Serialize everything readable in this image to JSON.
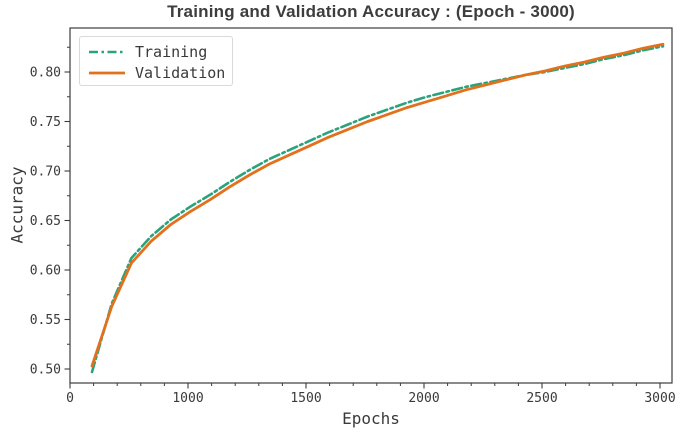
{
  "chart_data": {
    "type": "line",
    "title": "Training and Validation Accuracy : (Epoch - 3000)",
    "xlabel": "Epochs",
    "ylabel": "Accuracy",
    "x": [
      100,
      200,
      300,
      400,
      500,
      600,
      700,
      800,
      900,
      1000,
      1100,
      1200,
      1300,
      1400,
      1500,
      1600,
      1700,
      1800,
      1900,
      2000,
      2100,
      2200,
      2300,
      2400,
      2500,
      2600,
      2700,
      2800,
      2900,
      3000
    ],
    "x_tick_labels": [
      "0",
      "1000",
      "1500",
      "2000",
      "2500",
      "3000"
    ],
    "x_ticks_equally_spaced": true,
    "x_minor_ticks_per_interval": 4,
    "y_ticks": [
      0.5,
      0.55,
      0.6,
      0.65,
      0.7,
      0.75,
      0.8
    ],
    "y_tick_labels": [
      "0.50",
      "0.55",
      "0.60",
      "0.65",
      "0.70",
      "0.75",
      "0.80"
    ],
    "y_minor_ticks": [
      0.525,
      0.575,
      0.625,
      0.675,
      0.725,
      0.775,
      0.825
    ],
    "ylim": [
      0.486,
      0.844
    ],
    "grid": false,
    "legend_position": "upper-left",
    "series": [
      {
        "name": "Training",
        "color": "#2aa37c",
        "line_style": "dashdot",
        "values": [
          0.497,
          0.566,
          0.612,
          0.634,
          0.651,
          0.664,
          0.676,
          0.689,
          0.701,
          0.712,
          0.721,
          0.73,
          0.739,
          0.747,
          0.755,
          0.762,
          0.769,
          0.775,
          0.78,
          0.785,
          0.789,
          0.793,
          0.797,
          0.8,
          0.804,
          0.808,
          0.813,
          0.817,
          0.822,
          0.826
        ]
      },
      {
        "name": "Validation",
        "color": "#e2711d",
        "line_style": "solid",
        "values": [
          0.503,
          0.563,
          0.607,
          0.629,
          0.646,
          0.659,
          0.671,
          0.684,
          0.696,
          0.707,
          0.716,
          0.725,
          0.734,
          0.742,
          0.75,
          0.757,
          0.764,
          0.77,
          0.776,
          0.782,
          0.787,
          0.792,
          0.797,
          0.801,
          0.806,
          0.81,
          0.815,
          0.819,
          0.824,
          0.828
        ]
      }
    ]
  }
}
